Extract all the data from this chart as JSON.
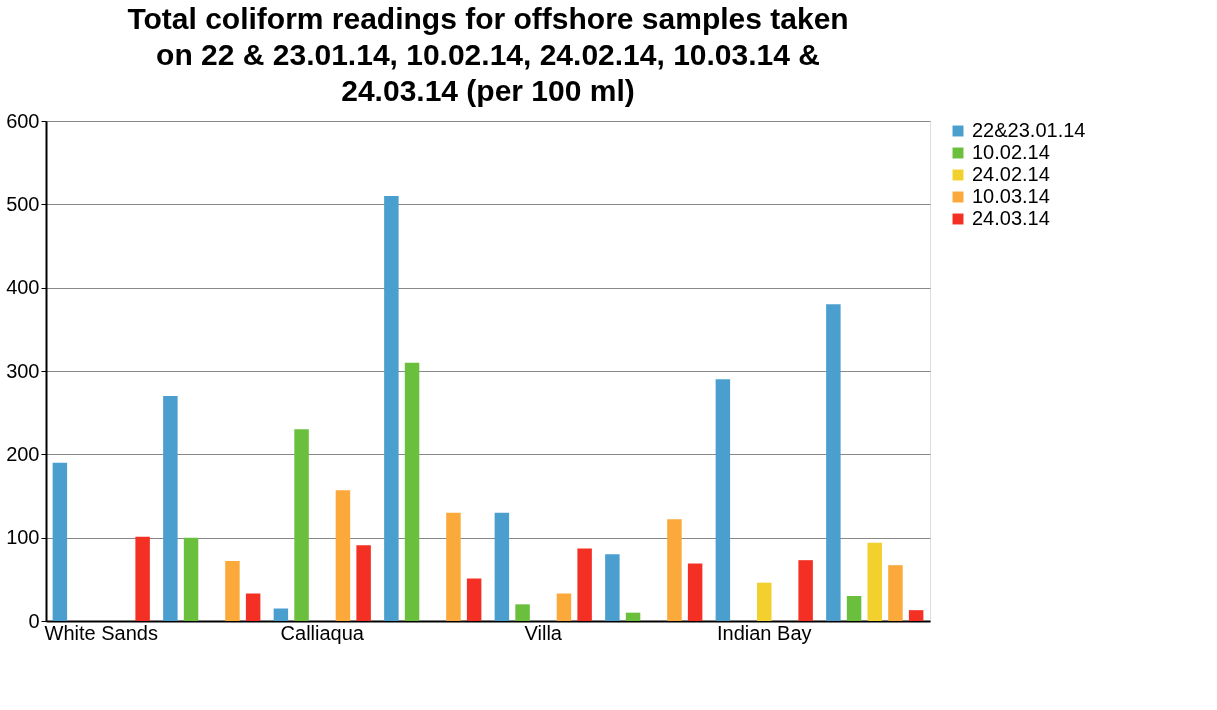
{
  "chart_data": {
    "type": "bar",
    "title": "Total coliform readings for offshore samples taken on 22 & 23.01.14, 10.02.14, 24.02.14, 10.03.14 & 24.03.14 (per 100 ml)",
    "categories": [
      "White Sands",
      null,
      "Calliaqua",
      null,
      "Villa",
      null,
      "Indian Bay",
      null
    ],
    "series": [
      {
        "name": "22&23.01.14",
        "color": "#4a9fcf",
        "values": [
          190,
          270,
          15,
          510,
          130,
          80,
          290,
          380
        ]
      },
      {
        "name": "10.02.14",
        "color": "#6abf3c",
        "values": [
          0,
          100,
          230,
          310,
          20,
          10,
          0,
          30
        ]
      },
      {
        "name": "24.02.14",
        "color": "#f2d12e",
        "values": [
          0,
          0,
          0,
          0,
          0,
          0,
          46,
          94
        ]
      },
      {
        "name": "10.03.14",
        "color": "#fba93a",
        "values": [
          0,
          72,
          157,
          130,
          33,
          122,
          0,
          67
        ]
      },
      {
        "name": "24.03.14",
        "color": "#f43024",
        "values": [
          101,
          33,
          91,
          51,
          87,
          69,
          73,
          13
        ]
      }
    ],
    "ylim": [
      0,
      600
    ],
    "yticks": [
      0,
      100,
      200,
      300,
      400,
      500,
      600
    ],
    "grid": "y",
    "legend": "right"
  }
}
